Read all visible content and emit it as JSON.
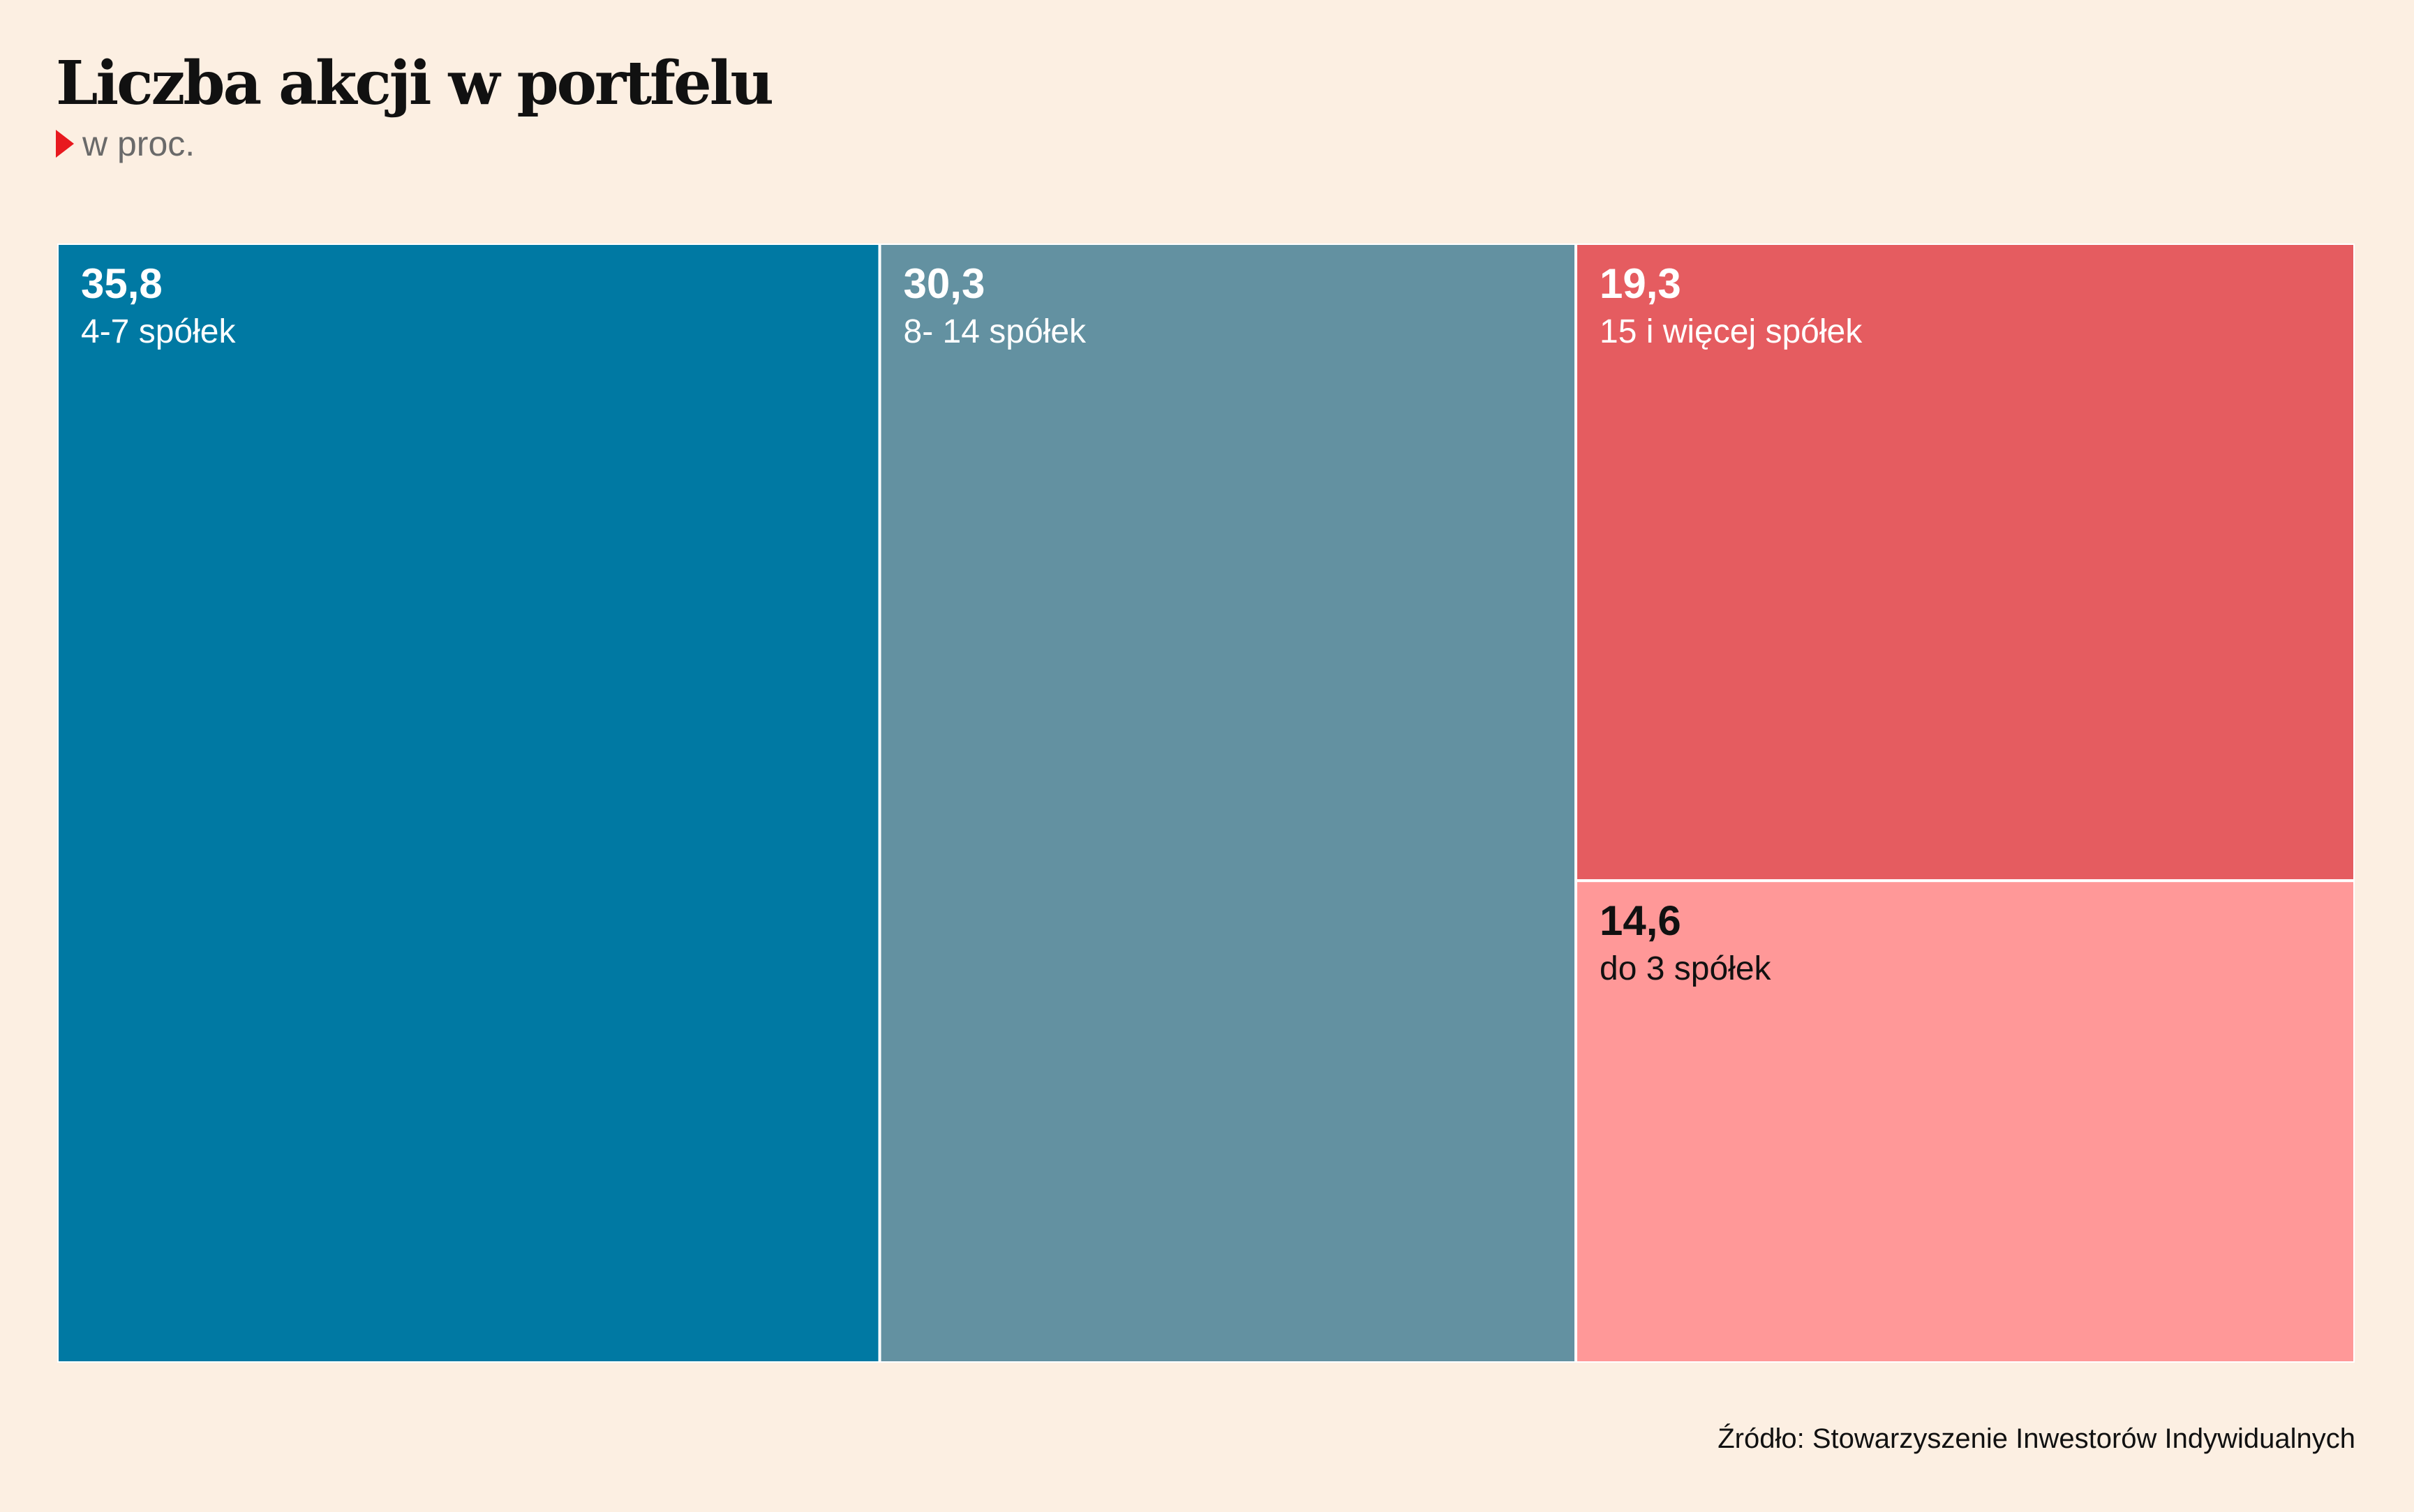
{
  "chart_data": {
    "type": "treemap",
    "title": "Liczba akcji w portfelu",
    "subtitle": "w proc.",
    "source": "Źródło: Stowarzyszenie Inwestorów Indywidualnych",
    "segments": [
      {
        "value": 35.8,
        "value_text": "35,8",
        "label": "4-7 spółek",
        "color": "#0079a3",
        "text_color": "#ffffff"
      },
      {
        "value": 30.3,
        "value_text": "30,3",
        "label": "8- 14 spółek",
        "color": "#6391a1",
        "text_color": "#ffffff"
      },
      {
        "value": 19.3,
        "value_text": "19,3",
        "label": "15 i więcej spółek",
        "color": "#e55c60",
        "text_color": "#ffffff"
      },
      {
        "value": 14.6,
        "value_text": "14,6",
        "label": "do 3 spółek",
        "color": "#ff9898",
        "text_color": "#111111"
      }
    ]
  }
}
